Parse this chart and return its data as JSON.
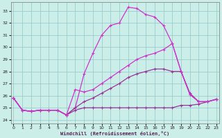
{
  "background_color": "#cceee8",
  "grid_color": "#99cccc",
  "line_color_dark": "#993399",
  "line_color_bright": "#cc33cc",
  "xlim": [
    -0.3,
    23.3
  ],
  "ylim": [
    23.7,
    33.7
  ],
  "xticks": [
    0,
    1,
    2,
    3,
    4,
    5,
    6,
    7,
    8,
    9,
    10,
    11,
    12,
    13,
    14,
    15,
    16,
    17,
    18,
    19,
    20,
    21,
    22,
    23
  ],
  "yticks": [
    24,
    25,
    26,
    27,
    28,
    29,
    30,
    31,
    32,
    33
  ],
  "xlabel": "Windchill (Refroidissement éolien,°C)",
  "series": [
    {
      "x": [
        0,
        1,
        2,
        3,
        4,
        5,
        6,
        7,
        8,
        9,
        10,
        11,
        12,
        13,
        14,
        15,
        16,
        17,
        18,
        19,
        20,
        21,
        22,
        23
      ],
      "y": [
        25.8,
        24.8,
        24.7,
        24.8,
        24.8,
        24.8,
        24.4,
        24.8,
        25.0,
        25.0,
        25.0,
        25.0,
        25.0,
        25.0,
        25.0,
        25.0,
        25.0,
        25.0,
        25.0,
        25.2,
        25.2,
        25.3,
        25.5,
        25.7
      ],
      "color": "#993399",
      "lw": 0.9
    },
    {
      "x": [
        0,
        1,
        2,
        3,
        4,
        5,
        6,
        7,
        8,
        9,
        10,
        11,
        12,
        13,
        14,
        15,
        16,
        17,
        18,
        19,
        20,
        21,
        22,
        23
      ],
      "y": [
        25.8,
        24.8,
        24.7,
        24.8,
        24.8,
        24.8,
        24.4,
        25.0,
        27.8,
        29.5,
        31.0,
        31.8,
        32.0,
        33.3,
        33.2,
        32.7,
        32.5,
        31.8,
        30.3,
        28.0,
        26.1,
        25.5,
        25.5,
        25.7
      ],
      "color": "#cc33cc",
      "lw": 0.9
    },
    {
      "x": [
        0,
        1,
        2,
        3,
        4,
        5,
        6,
        7,
        8,
        9,
        10,
        11,
        12,
        13,
        14,
        15,
        16,
        17,
        18,
        19,
        20,
        21,
        22,
        23
      ],
      "y": [
        25.8,
        24.8,
        24.7,
        24.8,
        24.8,
        24.8,
        24.4,
        25.0,
        25.5,
        25.8,
        26.2,
        26.6,
        27.0,
        27.5,
        27.8,
        28.0,
        28.2,
        28.2,
        28.0,
        28.0,
        26.2,
        25.5,
        25.5,
        25.7
      ],
      "color": "#993399",
      "lw": 0.9
    },
    {
      "x": [
        0,
        1,
        2,
        3,
        4,
        5,
        6,
        7,
        8,
        9,
        10,
        11,
        12,
        13,
        14,
        15,
        16,
        17,
        18,
        19,
        20,
        21,
        22,
        23
      ],
      "y": [
        25.8,
        24.8,
        24.7,
        24.8,
        24.8,
        24.8,
        24.4,
        26.5,
        26.3,
        26.5,
        27.0,
        27.5,
        28.0,
        28.5,
        29.0,
        29.3,
        29.5,
        29.8,
        30.3,
        28.0,
        26.1,
        25.5,
        25.5,
        25.7
      ],
      "color": "#cc33cc",
      "lw": 0.9
    }
  ]
}
